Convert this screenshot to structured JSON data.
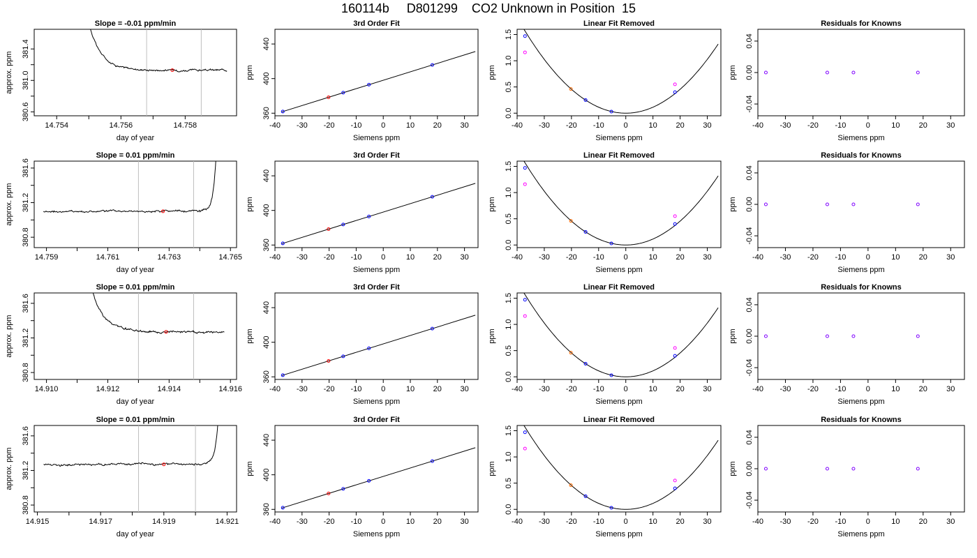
{
  "title": "160114b     D801299    CO2 Unknown in Position  15",
  "colors": {
    "axis": "#000000",
    "trace": "#000000",
    "vline": "#bebebe",
    "marker_red": "#ff0000",
    "marker_orange": "#ff6a00",
    "marker_blue": "#0000ff",
    "marker_magenta": "#ff00ff",
    "marker_purple": "#7f00ff"
  },
  "labels": {
    "day_of_year": "day of year",
    "approx_ppm": "approx. ppm",
    "ppm": "ppm",
    "siemens_ppm": "Siemens ppm",
    "fit_title": "3rd Order Fit",
    "linfit_title": "Linear Fit Removed",
    "resid_title": "Residuals for Knowns"
  },
  "chart_data": [
    {
      "type": "line",
      "panel": "time-series",
      "row": 1,
      "title": "Slope =  -0.01  ppm/min",
      "xlabel": "day of year",
      "ylabel": "approx. ppm",
      "xlim": [
        14.7533,
        14.7596
      ],
      "ylim": [
        380.55,
        381.65
      ],
      "xticks": [
        14.754,
        14.756,
        14.758
      ],
      "xtick_labels": [
        "14.754",
        "14.756",
        "14.758"
      ],
      "yticks": [
        380.6,
        381.0,
        381.4
      ],
      "ytick_labels": [
        "380.6",
        "381.0",
        "381.4"
      ],
      "vlines": [
        14.7568,
        14.7585
      ],
      "trace": {
        "start": 14.7547,
        "end": 14.7593,
        "spike_side": "start",
        "level": 381.13
      },
      "marker": {
        "x": 14.7576,
        "y": 381.13
      }
    },
    {
      "type": "line",
      "panel": "time-series",
      "row": 2,
      "title": "Slope =  0.01  ppm/min",
      "xlabel": "day of year",
      "ylabel": "approx. ppm",
      "xlim": [
        14.7586,
        14.7652
      ],
      "ylim": [
        380.68,
        381.68
      ],
      "xticks": [
        14.759,
        14.761,
        14.763,
        14.765
      ],
      "xtick_labels": [
        "14.759",
        "14.761",
        "14.763",
        "14.765"
      ],
      "yticks": [
        380.8,
        381.2,
        381.6
      ],
      "ytick_labels": [
        "380.8",
        "381.2",
        "381.6"
      ],
      "vlines": [
        14.762,
        14.7638
      ],
      "trace": {
        "start": 14.7589,
        "end": 14.7646,
        "spike_side": "end",
        "level": 381.1
      },
      "marker": {
        "x": 14.7628,
        "y": 381.1
      }
    },
    {
      "type": "line",
      "panel": "time-series",
      "row": 3,
      "title": "Slope =  0.01  ppm/min",
      "xlabel": "day of year",
      "ylabel": "approx. ppm",
      "xlim": [
        14.9096,
        14.9162
      ],
      "ylim": [
        380.72,
        381.72
      ],
      "xticks": [
        14.91,
        14.912,
        14.914,
        14.916
      ],
      "xtick_labels": [
        "14.910",
        "14.912",
        "14.914",
        "14.916"
      ],
      "yticks": [
        380.8,
        381.2,
        381.6
      ],
      "ytick_labels": [
        "380.8",
        "381.2",
        "381.6"
      ],
      "vlines": [
        14.913,
        14.9148
      ],
      "trace": {
        "start": 14.9111,
        "end": 14.9158,
        "spike_side": "start",
        "level": 381.27
      },
      "marker": {
        "x": 14.9139,
        "y": 381.27
      }
    },
    {
      "type": "line",
      "panel": "time-series",
      "row": 4,
      "title": "Slope =  0.01  ppm/min",
      "xlabel": "day of year",
      "ylabel": "approx. ppm",
      "xlim": [
        14.9149,
        14.9213
      ],
      "ylim": [
        380.72,
        381.72
      ],
      "xticks": [
        14.915,
        14.917,
        14.919,
        14.921
      ],
      "xtick_labels": [
        "14.915",
        "14.917",
        "14.919",
        "14.921"
      ],
      "yticks": [
        380.8,
        381.2,
        381.6
      ],
      "ytick_labels": [
        "380.8",
        "381.2",
        "381.6"
      ],
      "vlines": [
        14.9182,
        14.92
      ],
      "trace": {
        "start": 14.9152,
        "end": 14.9208,
        "spike_side": "end",
        "level": 381.27
      },
      "marker": {
        "x": 14.919,
        "y": 381.27
      }
    },
    {
      "type": "scatter",
      "panel": "cubic-fit",
      "rows": [
        1,
        2,
        3,
        4
      ],
      "title": "3rd Order Fit",
      "xlabel": "Siemens ppm",
      "ylabel": "ppm",
      "xlim": [
        -40,
        35
      ],
      "ylim": [
        357,
        457
      ],
      "xticks": [
        -40,
        -30,
        -20,
        -10,
        0,
        10,
        20,
        30
      ],
      "yticks": [
        360,
        400,
        440
      ],
      "fit_line": {
        "slope": 0.976,
        "intercept": 398.1,
        "xrange": [
          -37.5,
          34
        ]
      },
      "knowns": [
        {
          "x": -37.1,
          "y": 361.9
        },
        {
          "x": -14.8,
          "y": 383.7
        },
        {
          "x": -5.3,
          "y": 393.0
        },
        {
          "x": 18.1,
          "y": 415.8
        }
      ],
      "unknown": {
        "x": -20.2,
        "y": 378.4
      }
    },
    {
      "type": "scatter",
      "panel": "linear-removed",
      "rows": [
        1,
        2,
        3,
        4
      ],
      "title": "Linear Fit Removed",
      "xlabel": "Siemens ppm",
      "ylabel": "ppm",
      "xlim": [
        -40,
        35
      ],
      "ylim": [
        -0.05,
        1.6
      ],
      "xticks": [
        -40,
        -30,
        -20,
        -10,
        0,
        10,
        20,
        30
      ],
      "yticks": [
        0.0,
        0.5,
        1.0,
        1.5
      ],
      "ytick_labels": [
        "0.0",
        "0.5",
        "1.0",
        "1.5"
      ],
      "curve": {
        "a": 0.00114,
        "b": 0,
        "c": 0,
        "xrange": [
          -37.5,
          34
        ]
      },
      "knowns": [
        {
          "x": -37.1,
          "y": 1.47
        },
        {
          "x": -14.8,
          "y": 0.25
        },
        {
          "x": -5.3,
          "y": 0.03
        },
        {
          "x": 18.1,
          "y": 0.4
        }
      ],
      "unknown": {
        "x": -20.2,
        "y": 0.46
      },
      "raw_knowns": [
        {
          "x": -37.1,
          "y": 1.16
        },
        {
          "x": 18.1,
          "y": 0.55
        }
      ]
    },
    {
      "type": "scatter",
      "panel": "residuals",
      "rows": [
        1,
        2,
        3,
        4
      ],
      "title": "Residuals for Knowns",
      "xlabel": "Siemens ppm",
      "ylabel": "ppm",
      "xlim": [
        -40,
        35
      ],
      "ylim": [
        -0.055,
        0.055
      ],
      "xticks": [
        -40,
        -30,
        -20,
        -10,
        0,
        10,
        20,
        30
      ],
      "yticks": [
        -0.04,
        0.0,
        0.04
      ],
      "ytick_labels": [
        "-0.04",
        "0.00",
        "0.04"
      ],
      "points": [
        {
          "x": -37.1,
          "y": 0.0
        },
        {
          "x": -14.8,
          "y": 0.0
        },
        {
          "x": -5.3,
          "y": 0.0
        },
        {
          "x": 18.1,
          "y": 0.0
        }
      ]
    }
  ]
}
